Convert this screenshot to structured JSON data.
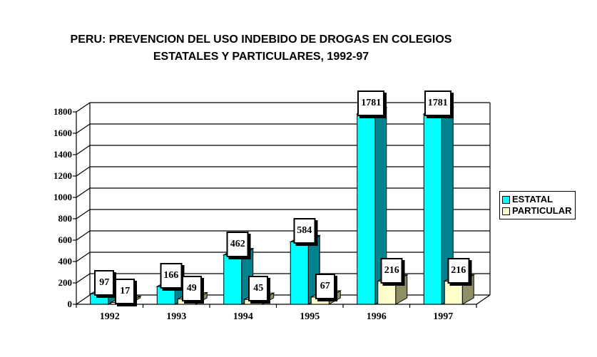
{
  "title": {
    "line1": "PERU: PREVENCION DEL USO INDEBIDO DE DROGAS EN COLEGIOS",
    "line2": "ESTATALES Y PARTICULARES, 1992-97"
  },
  "legend": {
    "items": [
      {
        "label": "ESTATAL",
        "color": "#00FFFF"
      },
      {
        "label": "PARTICULAR",
        "color": "#FFFFCC"
      }
    ]
  },
  "chart_data": {
    "type": "bar",
    "style": "3d-clustered-column",
    "title": "PERU: PREVENCION DEL USO INDEBIDO DE DROGAS EN COLEGIOS ESTATALES Y PARTICULARES, 1992-97",
    "categories": [
      "1992",
      "1993",
      "1994",
      "1995",
      "1996",
      "1997"
    ],
    "series": [
      {
        "name": "ESTATAL",
        "color": "#00FFFF",
        "side_color": "#00838F",
        "top_color": "#0098A6",
        "values": [
          97,
          166,
          462,
          584,
          1781,
          1781
        ]
      },
      {
        "name": "PARTICULAR",
        "color": "#FFFFCC",
        "side_color": "#8F8F66",
        "top_color": "#CCCC99",
        "values": [
          17,
          49,
          45,
          67,
          216,
          216
        ]
      }
    ],
    "xlabel": "",
    "ylabel": "",
    "ylim": [
      0,
      1800
    ],
    "ytick_step": 200,
    "yticks": [
      0,
      200,
      400,
      600,
      800,
      1000,
      1200,
      1400,
      1600,
      1800
    ],
    "grid": "horizontal",
    "legend_position": "right",
    "data_labels": true
  }
}
